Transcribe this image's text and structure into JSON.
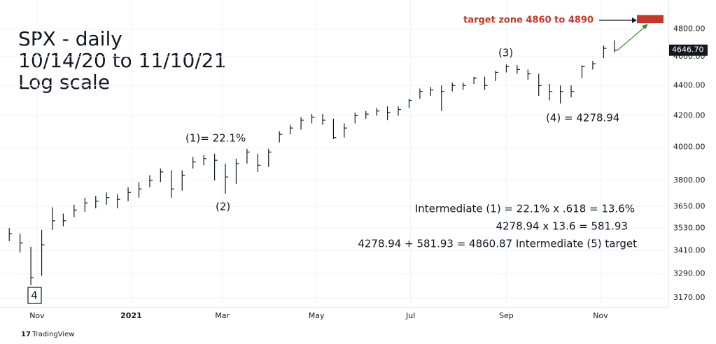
{
  "chart_data": {
    "type": "ohlc",
    "title": [
      "SPX - daily",
      "10/14/20 to 11/10/21",
      "Log scale"
    ],
    "log_scale": true,
    "grid": true,
    "color": "#131722",
    "x": [
      "2020-10-14",
      "2020-10-21",
      "2020-10-28",
      "2020-11-04",
      "2020-11-11",
      "2020-11-18",
      "2020-11-25",
      "2020-12-02",
      "2020-12-09",
      "2020-12-16",
      "2020-12-23",
      "2020-12-30",
      "2021-01-06",
      "2021-01-13",
      "2021-01-20",
      "2021-01-27",
      "2021-02-03",
      "2021-02-10",
      "2021-02-17",
      "2021-02-24",
      "2021-03-03",
      "2021-03-10",
      "2021-03-17",
      "2021-03-24",
      "2021-03-31",
      "2021-04-07",
      "2021-04-14",
      "2021-04-21",
      "2021-04-28",
      "2021-05-05",
      "2021-05-12",
      "2021-05-19",
      "2021-05-26",
      "2021-06-02",
      "2021-06-09",
      "2021-06-16",
      "2021-06-23",
      "2021-06-30",
      "2021-07-07",
      "2021-07-14",
      "2021-07-21",
      "2021-07-28",
      "2021-08-04",
      "2021-08-11",
      "2021-08-18",
      "2021-08-25",
      "2021-09-01",
      "2021-09-08",
      "2021-09-15",
      "2021-09-22",
      "2021-09-29",
      "2021-10-06",
      "2021-10-13",
      "2021-10-20",
      "2021-10-27",
      "2021-11-03",
      "2021-11-10"
    ],
    "high": [
      3530,
      3500,
      3430,
      3520,
      3645,
      3610,
      3660,
      3700,
      3710,
      3730,
      3720,
      3760,
      3790,
      3830,
      3870,
      3860,
      3860,
      3940,
      3950,
      3960,
      3900,
      3930,
      3990,
      3960,
      3990,
      4100,
      4140,
      4190,
      4210,
      4210,
      4180,
      4150,
      4220,
      4230,
      4250,
      4260,
      4260,
      4310,
      4380,
      4390,
      4400,
      4420,
      4420,
      4460,
      4460,
      4500,
      4545,
      4540,
      4510,
      4480,
      4410,
      4400,
      4400,
      4540,
      4570,
      4680,
      4718
    ],
    "low": [
      3460,
      3400,
      3233,
      3280,
      3520,
      3540,
      3590,
      3620,
      3640,
      3660,
      3640,
      3680,
      3700,
      3760,
      3790,
      3700,
      3740,
      3870,
      3890,
      3800,
      3723,
      3780,
      3900,
      3850,
      3880,
      4030,
      4080,
      4110,
      4150,
      4140,
      4050,
      4060,
      4150,
      4180,
      4200,
      4170,
      4200,
      4250,
      4310,
      4330,
      4230,
      4360,
      4370,
      4410,
      4370,
      4430,
      4490,
      4480,
      4440,
      4330,
      4300,
      4278.94,
      4320,
      4450,
      4510,
      4590,
      4630
    ],
    "close": [
      3500,
      3450,
      3270,
      3440,
      3570,
      3570,
      3630,
      3670,
      3680,
      3700,
      3690,
      3730,
      3750,
      3800,
      3850,
      3750,
      3830,
      3910,
      3930,
      3920,
      3820,
      3900,
      3970,
      3890,
      3970,
      4080,
      4120,
      4170,
      4190,
      4170,
      4060,
      4120,
      4200,
      4210,
      4230,
      4220,
      4240,
      4300,
      4360,
      4370,
      4360,
      4400,
      4400,
      4450,
      4400,
      4490,
      4530,
      4510,
      4480,
      4400,
      4360,
      4360,
      4360,
      4530,
      4550,
      4660,
      4646.7
    ],
    "last_label": "4646.70",
    "xlim": [
      "2020-10-08",
      "2021-12-15"
    ],
    "xticks": [
      {
        "value": "2020-11-01",
        "label": "Nov"
      },
      {
        "value": "2021-01-01",
        "label": "2021"
      },
      {
        "value": "2021-03-01",
        "label": "Mar"
      },
      {
        "value": "2021-05-01",
        "label": "May"
      },
      {
        "value": "2021-07-01",
        "label": "Jul"
      },
      {
        "value": "2021-09-01",
        "label": "Sep"
      },
      {
        "value": "2021-11-01",
        "label": "Nov"
      }
    ],
    "ylim": [
      3122,
      5021
    ],
    "yticks": [
      {
        "value": 3170,
        "label": "3170.00"
      },
      {
        "value": 3290,
        "label": "3290.00"
      },
      {
        "value": 3410,
        "label": "3410.00"
      },
      {
        "value": 3530,
        "label": "3530.00"
      },
      {
        "value": 3650,
        "label": "3650.00"
      },
      {
        "value": 3800,
        "label": "3800.00"
      },
      {
        "value": 4000,
        "label": "4000.00"
      },
      {
        "value": 4200,
        "label": "4200.00"
      },
      {
        "value": 4400,
        "label": "4400.00"
      },
      {
        "value": 4600,
        "label": "4600.00"
      },
      {
        "value": 4800,
        "label": "4800.00"
      }
    ],
    "target_zone": {
      "label": "target zone 4860 to 4890",
      "low": 4860,
      "high": 4890,
      "color": "#c0392b"
    },
    "annotations": [
      "(1)= 22.1%",
      "(2)",
      "(3)",
      "(4)  = 4278.94",
      "4",
      "Intermediate (1) = 22.1% x .618 = 13.6%",
      "4278.94 x 13.6 = 581.93",
      "4278.94 + 581.93 = 4860.87 Intermediate (5) target"
    ],
    "source": "TradingView"
  }
}
